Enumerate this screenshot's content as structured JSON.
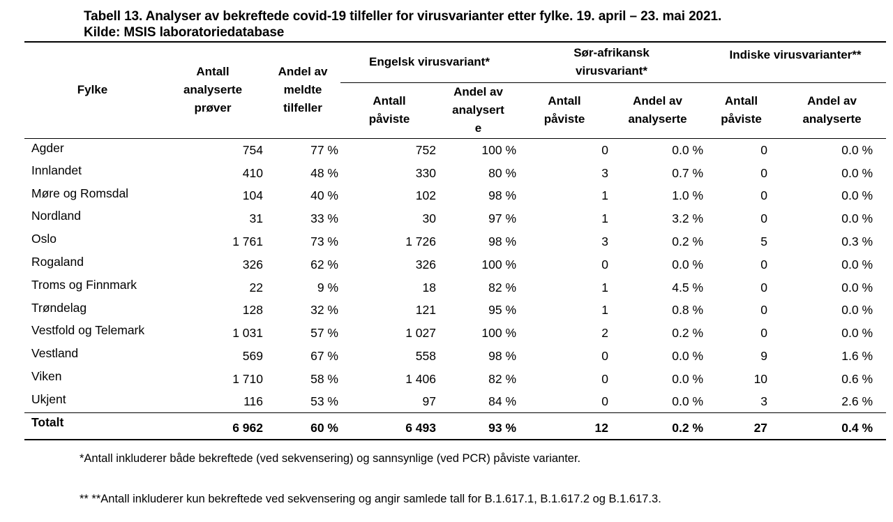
{
  "page": {
    "background_color": "#ffffff",
    "text_color": "#000000"
  },
  "title": {
    "line1": "Tabell 13. Analyser av bekreftede covid-19 tilfeller for virusvarianter etter fylke. 19. april – 23. mai 2021.",
    "line2": "Kilde: MSIS laboratoriedatabase"
  },
  "table": {
    "columns": {
      "fylke": "Fylke",
      "samples": "Antall\nanalyserte\nprøver",
      "share_reported": "Andel av\nmeldte\ntilfeller",
      "groups": [
        {
          "label": "Engelsk virusvariant*",
          "sub": [
            "Antall\npåviste",
            "Andel av\nanalysert\ne"
          ]
        },
        {
          "label": "Sør-afrikansk\nvirusvariant*",
          "sub": [
            "Antall\npåviste",
            "Andel av\nanalyserte"
          ]
        },
        {
          "label": "Indiske virusvarianter**",
          "sub": [
            "Antall\npåviste",
            "Andel av\nanalyserte"
          ]
        }
      ]
    },
    "rows": [
      {
        "fylke": "Agder",
        "values": [
          "754",
          "77 %",
          "752",
          "100 %",
          "0",
          "0.0 %",
          "0",
          "0.0 %"
        ]
      },
      {
        "fylke": "Innlandet",
        "values": [
          "410",
          "48 %",
          "330",
          "80 %",
          "3",
          "0.7 %",
          "0",
          "0.0 %"
        ]
      },
      {
        "fylke": "Møre og Romsdal",
        "values": [
          "104",
          "40 %",
          "102",
          "98 %",
          "1",
          "1.0 %",
          "0",
          "0.0 %"
        ]
      },
      {
        "fylke": "Nordland",
        "values": [
          "31",
          "33 %",
          "30",
          "97 %",
          "1",
          "3.2 %",
          "0",
          "0.0 %"
        ]
      },
      {
        "fylke": "Oslo",
        "values": [
          "1 761",
          "73 %",
          "1 726",
          "98 %",
          "3",
          "0.2 %",
          "5",
          "0.3 %"
        ]
      },
      {
        "fylke": "Rogaland",
        "values": [
          "326",
          "62 %",
          "326",
          "100 %",
          "0",
          "0.0 %",
          "0",
          "0.0 %"
        ]
      },
      {
        "fylke": "Troms og Finnmark",
        "values": [
          "22",
          "9 %",
          "18",
          "82 %",
          "1",
          "4.5 %",
          "0",
          "0.0 %"
        ]
      },
      {
        "fylke": "Trøndelag",
        "values": [
          "128",
          "32 %",
          "121",
          "95 %",
          "1",
          "0.8 %",
          "0",
          "0.0 %"
        ]
      },
      {
        "fylke": "Vestfold og Telemark",
        "values": [
          "1 031",
          "57 %",
          "1 027",
          "100 %",
          "2",
          "0.2 %",
          "0",
          "0.0 %"
        ]
      },
      {
        "fylke": "Vestland",
        "values": [
          "569",
          "67 %",
          "558",
          "98 %",
          "0",
          "0.0 %",
          "9",
          "1.6 %"
        ]
      },
      {
        "fylke": "Viken",
        "values": [
          "1 710",
          "58 %",
          "1 406",
          "82 %",
          "0",
          "0.0 %",
          "10",
          "0.6 %"
        ]
      },
      {
        "fylke": "Ukjent",
        "values": [
          "116",
          "53 %",
          "97",
          "84 %",
          "0",
          "0.0 %",
          "3",
          "2.6 %"
        ]
      }
    ],
    "total": {
      "label": "Totalt",
      "values": [
        "6 962",
        "60 %",
        "6 493",
        "93 %",
        "12",
        "0.2 %",
        "27",
        "0.4 %"
      ]
    }
  },
  "footnotes": {
    "note1": "*Antall inkluderer både bekreftede (ved sekvensering) og sannsynlige (ved PCR) påviste varianter.",
    "note2": "** **Antall inkluderer kun bekreftede ved sekvensering og angir samlede tall for B.1.617.1, B.1.617.2 og B.1.617.3."
  }
}
